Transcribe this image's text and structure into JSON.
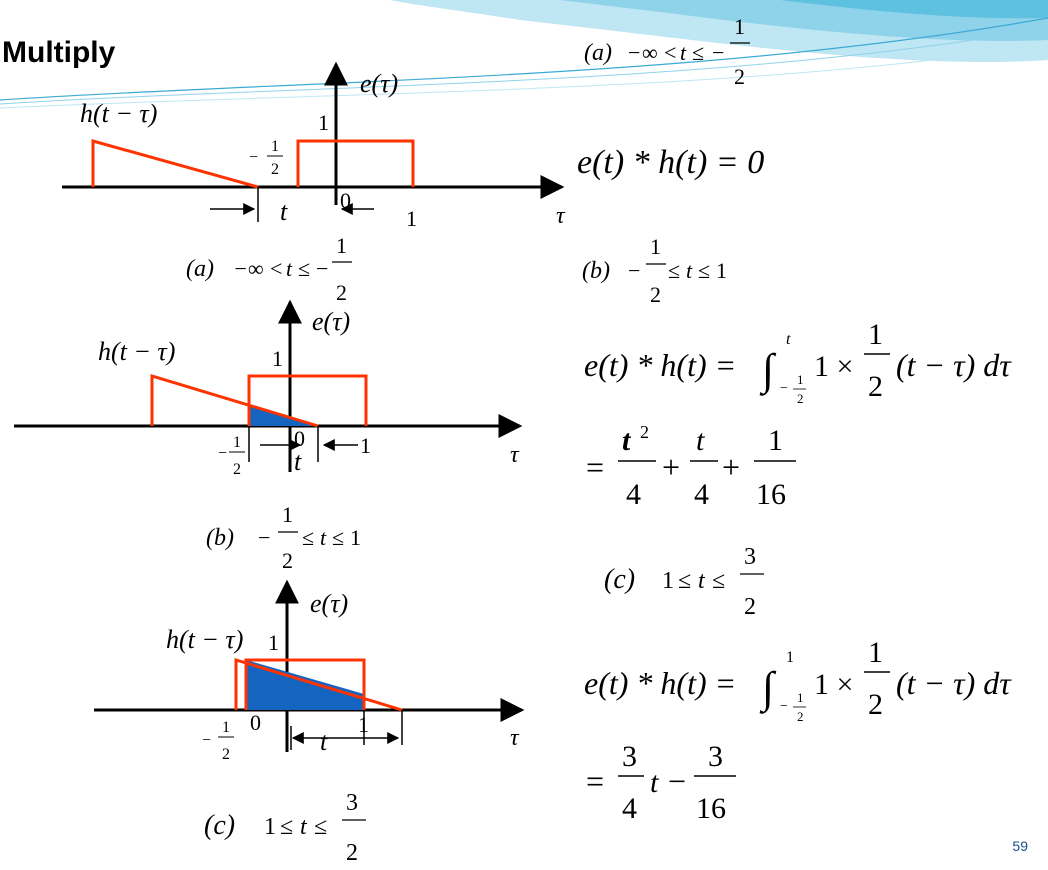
{
  "title": "Multiply",
  "page_number": "59",
  "colors": {
    "pulse": "#ff3300",
    "shade": "#1565c0",
    "page_number": "#1f4e8a",
    "banner_light": "#bfe6f3",
    "banner_mid": "#5ec1e0"
  },
  "diagrams": [
    {
      "id": "a",
      "e_label": "e(τ)",
      "h_label": "h(t − τ)",
      "amp": "1",
      "neg_half": "−1/2",
      "t_label": "t",
      "zero": "0",
      "one": "1",
      "axis": "τ",
      "caption": "(a)  −∞ < t ≤ −1/2"
    },
    {
      "id": "b",
      "e_label": "e(τ)",
      "h_label": "h(t − τ)",
      "amp": "1",
      "neg_half": "−1/2",
      "t_label": "t",
      "zero": "0",
      "one": "1",
      "axis": "τ",
      "caption": "(b)  −1/2 ≤ t ≤ 1"
    },
    {
      "id": "c",
      "e_label": "e(τ)",
      "h_label": "h(t − τ)",
      "amp": "1",
      "neg_half": "−1/2",
      "t_label": "t",
      "zero": "0",
      "one": "1",
      "axis": "τ",
      "caption": "(c)  1 ≤ t ≤ 3/2"
    }
  ],
  "cases": [
    {
      "label": "(a)",
      "condition": "−∞ < t ≤ −1/2",
      "result": "e(t) * h(t) = 0"
    },
    {
      "label": "(b)",
      "condition": "−1/2 ≤ t ≤ 1",
      "integral": "e(t) * h(t) = ∫_{−1/2}^{t} 1 × (1/2)(t − τ) dτ",
      "result": "= t²/4 + t/4 + 1/16"
    },
    {
      "label": "(c)",
      "condition": "1 ≤ t ≤ 3/2",
      "integral": "e(t) * h(t) = ∫_{−1/2}^{1} 1 × (1/2)(t − τ) dτ",
      "result": "= (3/4)t − 3/16"
    }
  ],
  "text": {
    "minus": "−",
    "one": "1",
    "two": "2",
    "three": "3",
    "four": "4",
    "sixteen": "16",
    "le": "≤",
    "lt": "<",
    "inf": "∞",
    "t": "t",
    "tau": "τ",
    "lab_a": "(a)",
    "lab_b": "(b)",
    "lab_c": "(c)",
    "conv": "e(t) * h(t) =",
    "zero_result": "e(t) * h(t) = 0",
    "int": "∫",
    "times": "1 ×",
    "tail": "(t − τ) dτ",
    "eq": "=",
    "plus": "+",
    "tsq": "t",
    "sq": "2",
    "neg": "−1",
    "t_sym": "t"
  }
}
